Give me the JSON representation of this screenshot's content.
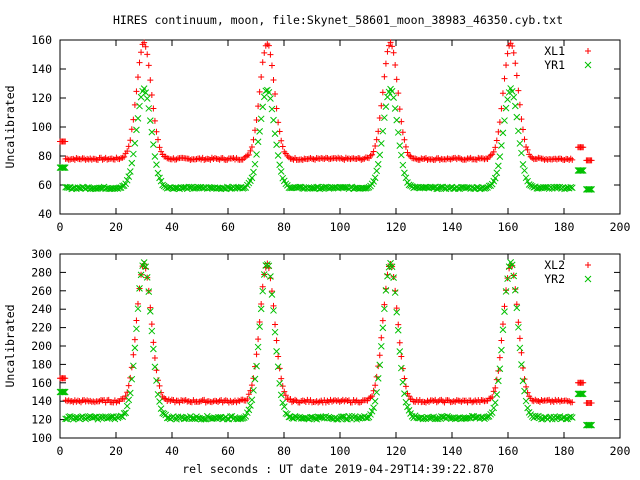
{
  "title": "HIRES continuum, moon, file:Skynet_58601_moon_38983_46350.cyb.txt",
  "xlabel": "rel seconds : UT date 2019-04-29T14:39:22.870",
  "colors": {
    "s1": "#ff0000",
    "s2": "#00c000"
  },
  "chart_data": [
    {
      "type": "scatter",
      "ylabel": "Uncalibrated",
      "xlim": [
        0,
        200
      ],
      "ylim": [
        40,
        160
      ],
      "xticks": [
        "0",
        "20",
        "40",
        "60",
        "80",
        "100",
        "120",
        "140",
        "160",
        "180",
        "200"
      ],
      "yticks": [
        "40",
        "60",
        "80",
        "100",
        "120",
        "140",
        "160"
      ],
      "legend_position": "top-right",
      "series": [
        {
          "name": "XL1",
          "marker": "+",
          "color": "#ff0000",
          "baseline": 78,
          "peak_height": 158,
          "peaks_x": [
            30,
            74,
            118,
            161
          ],
          "cal_x": [
            0,
            1,
            185,
            186,
            188,
            189
          ],
          "cal_y": [
            90,
            90,
            86,
            86,
            77,
            77
          ]
        },
        {
          "name": "YR1",
          "marker": "x",
          "color": "#00c000",
          "baseline": 58,
          "peak_height": 126,
          "peaks_x": [
            30,
            74,
            118,
            161
          ],
          "cal_x": [
            0,
            1,
            185,
            186,
            188,
            189
          ],
          "cal_y": [
            72,
            72,
            70,
            70,
            57,
            57
          ]
        }
      ]
    },
    {
      "type": "scatter",
      "ylabel": "Uncalibrated",
      "xlim": [
        0,
        200
      ],
      "ylim": [
        100,
        300
      ],
      "xticks": [
        "0",
        "20",
        "40",
        "60",
        "80",
        "100",
        "120",
        "140",
        "160",
        "180",
        "200"
      ],
      "yticks": [
        "100",
        "120",
        "140",
        "160",
        "180",
        "200",
        "220",
        "240",
        "260",
        "280",
        "300"
      ],
      "legend_position": "top-right",
      "series": [
        {
          "name": "XL2",
          "marker": "+",
          "color": "#ff0000",
          "baseline": 140,
          "peak_height": 289,
          "peaks_x": [
            30,
            74,
            118,
            161
          ],
          "cal_x": [
            0,
            1,
            185,
            186,
            188,
            189
          ],
          "cal_y": [
            165,
            165,
            160,
            160,
            138,
            138
          ]
        },
        {
          "name": "YR2",
          "marker": "x",
          "color": "#00c000",
          "baseline": 122,
          "peak_height": 290,
          "peaks_x": [
            30,
            74,
            118,
            161
          ],
          "cal_x": [
            0,
            1,
            185,
            186,
            188,
            189
          ],
          "cal_y": [
            150,
            150,
            148,
            148,
            114,
            114
          ]
        }
      ]
    }
  ]
}
